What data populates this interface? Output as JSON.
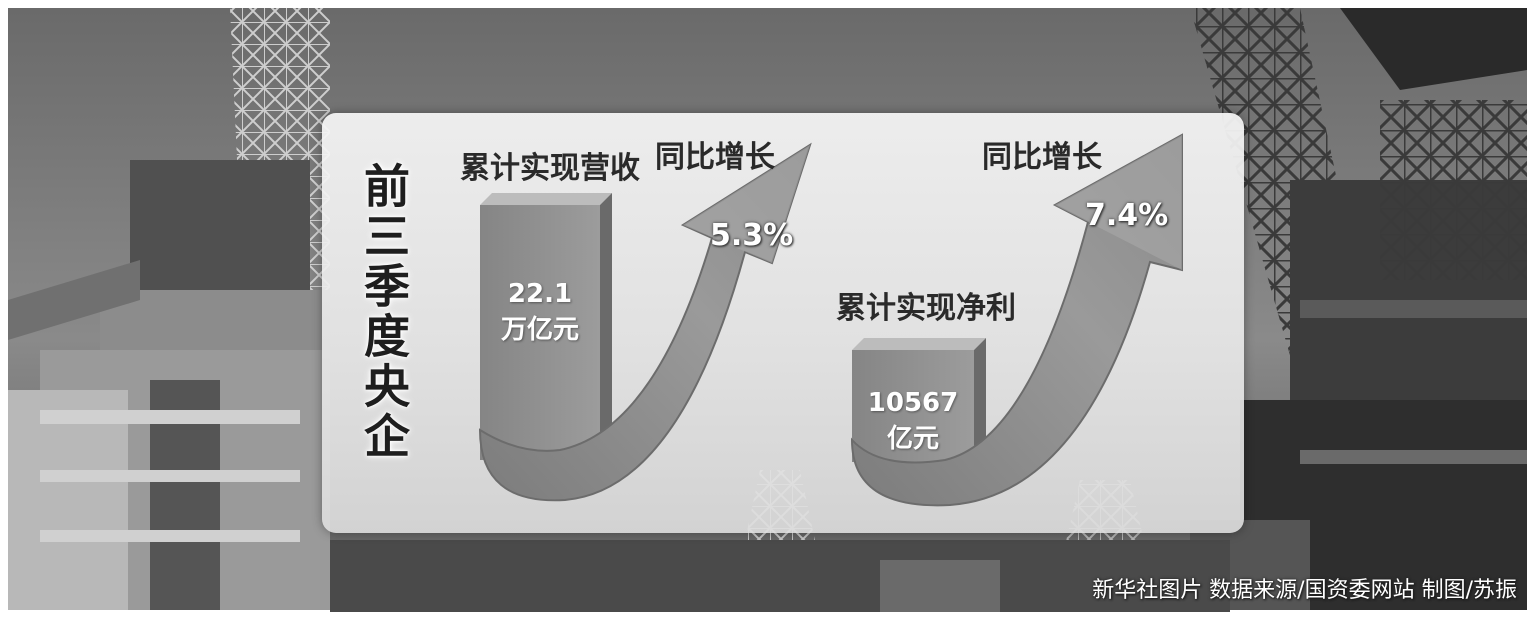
{
  "side_title": "前三季度央企",
  "revenue": {
    "label": "累计实现营收",
    "value_line1": "22.1",
    "value_line2": "万亿元"
  },
  "revenue_growth": {
    "label": "同比增长",
    "value": "5.3%"
  },
  "profit": {
    "label": "累计实现净利",
    "value_line1": "10567",
    "value_line2": "亿元"
  },
  "profit_growth": {
    "label": "同比增长",
    "value": "7.4%"
  },
  "credit": "新华社图片 数据来源/国资委网站 制图/苏振"
}
